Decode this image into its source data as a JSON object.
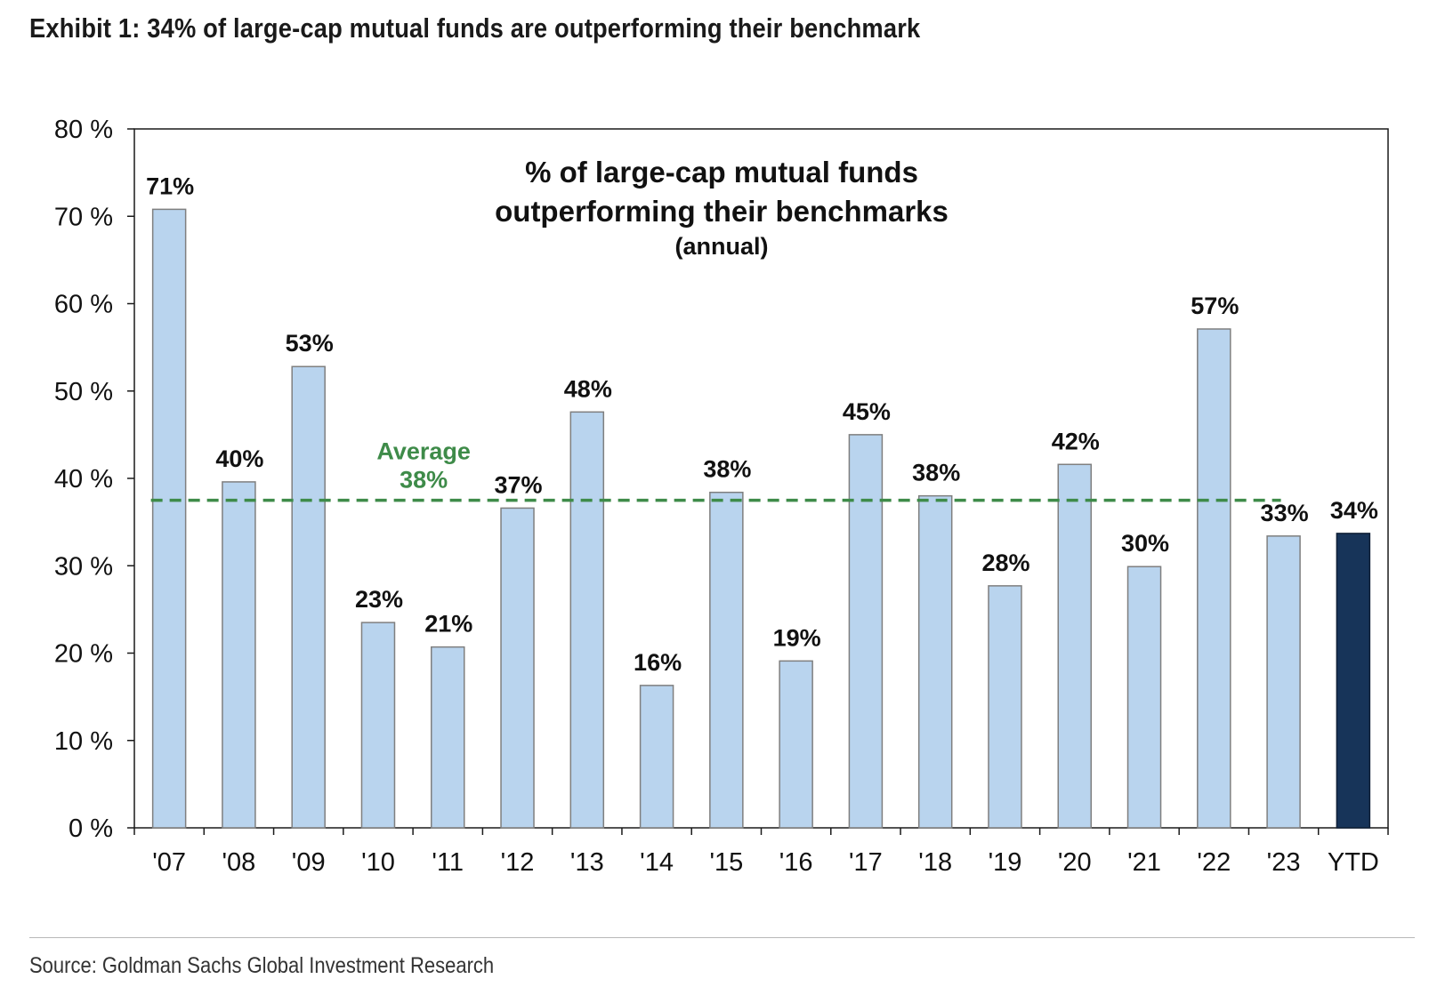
{
  "exhibit_title": "Exhibit 1: 34% of large-cap mutual funds are outperforming their benchmark",
  "source": "Source: Goldman Sachs Global Investment Research",
  "colors": {
    "bar": "#b9d4ee",
    "bar_highlight": "#173459",
    "bar_stroke": "#7f7f7f",
    "average_line": "#3e8b49",
    "axis": "#1a1a1a"
  },
  "chart_data": {
    "type": "bar",
    "title_lines": [
      "% of large-cap mutual funds",
      "outperforming their benchmarks"
    ],
    "subtitle": "(annual)",
    "categories": [
      "'07",
      "'08",
      "'09",
      "'10",
      "'11",
      "'12",
      "'13",
      "'14",
      "'15",
      "'16",
      "'17",
      "'18",
      "'19",
      "'20",
      "'21",
      "'22",
      "'23",
      "YTD"
    ],
    "values": [
      71,
      40,
      53,
      23,
      21,
      37,
      48,
      16,
      38,
      19,
      45,
      38,
      28,
      42,
      30,
      57,
      33,
      34
    ],
    "bar_values": [
      70.8,
      39.6,
      52.8,
      23.5,
      20.7,
      36.6,
      47.6,
      16.3,
      38.4,
      19.1,
      45.0,
      38.0,
      27.7,
      41.6,
      29.9,
      57.1,
      33.4,
      33.7
    ],
    "data_labels": [
      "71%",
      "40%",
      "53%",
      "23%",
      "21%",
      "37%",
      "48%",
      "16%",
      "38%",
      "19%",
      "45%",
      "38%",
      "28%",
      "42%",
      "30%",
      "57%",
      "33%",
      "34%"
    ],
    "highlight_index": 17,
    "ylim": [
      0,
      80
    ],
    "yticks": [
      0,
      10,
      20,
      30,
      40,
      50,
      60,
      70,
      80
    ],
    "ytick_labels": [
      "0 %",
      "10 %",
      "20 %",
      "30 %",
      "40 %",
      "50 %",
      "60 %",
      "70 %",
      "80 %"
    ],
    "average": {
      "value": 37.5,
      "label_line1": "Average",
      "label_line2": "38%",
      "from_category": 0,
      "to_category": 16
    },
    "xlabel": "",
    "ylabel": "",
    "grid": false,
    "legend": "none"
  }
}
